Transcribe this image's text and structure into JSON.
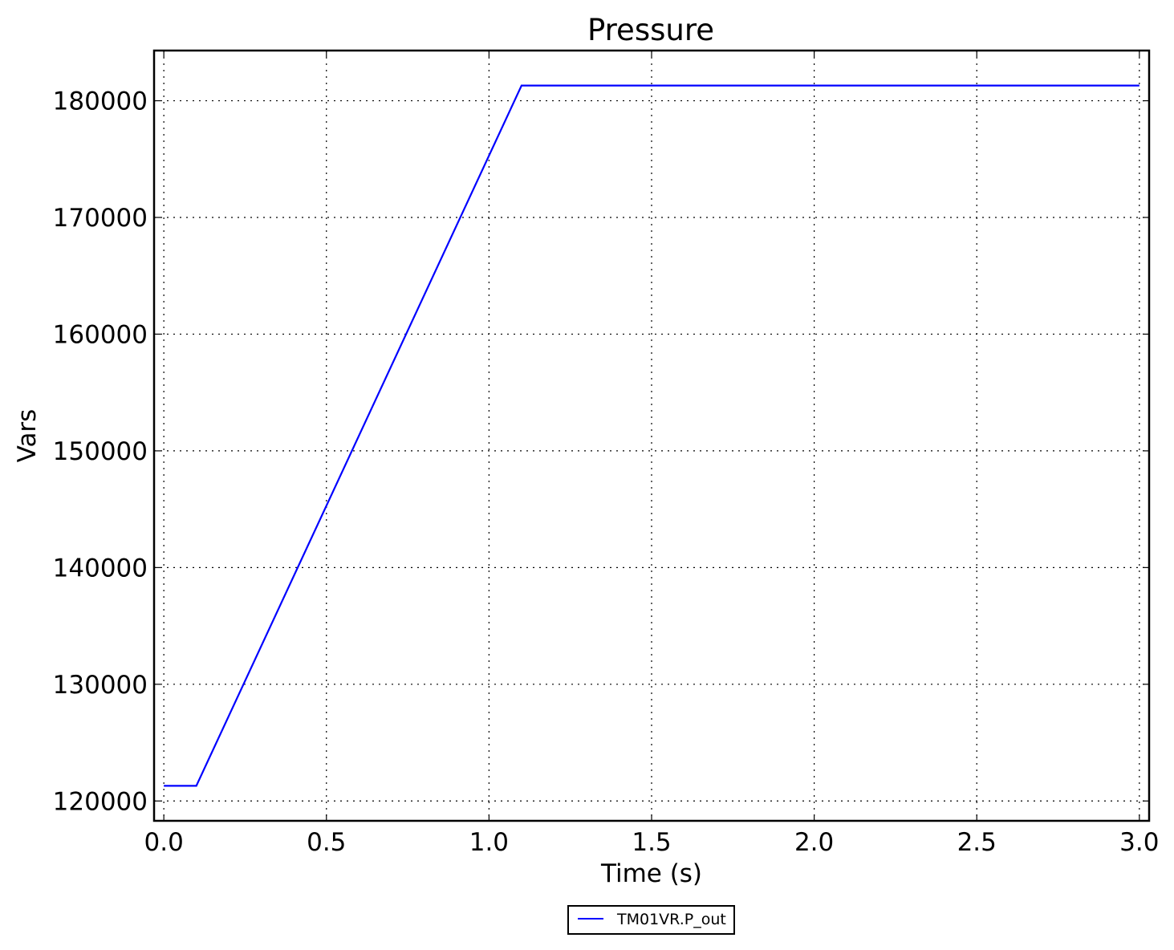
{
  "chart_data": {
    "type": "line",
    "title": "Pressure",
    "xlabel": "Time (s)",
    "ylabel": "Vars",
    "xlim": [
      -0.03,
      3.03
    ],
    "ylim": [
      118300,
      184300
    ],
    "xticks": [
      0.0,
      0.5,
      1.0,
      1.5,
      2.0,
      2.5,
      3.0
    ],
    "xtick_labels": [
      "0.0",
      "0.5",
      "1.0",
      "1.5",
      "2.0",
      "2.5",
      "3.0"
    ],
    "yticks": [
      120000,
      130000,
      140000,
      150000,
      160000,
      170000,
      180000
    ],
    "ytick_labels": [
      "120000",
      "130000",
      "140000",
      "150000",
      "160000",
      "170000",
      "180000"
    ],
    "grid": true,
    "legend_position": "bottom-center",
    "series": [
      {
        "name": "TM01VR.P_out",
        "color": "#0000ff",
        "x": [
          0.0,
          0.1,
          1.1,
          3.0
        ],
        "y": [
          121300,
          121300,
          181300,
          181300
        ]
      }
    ]
  }
}
